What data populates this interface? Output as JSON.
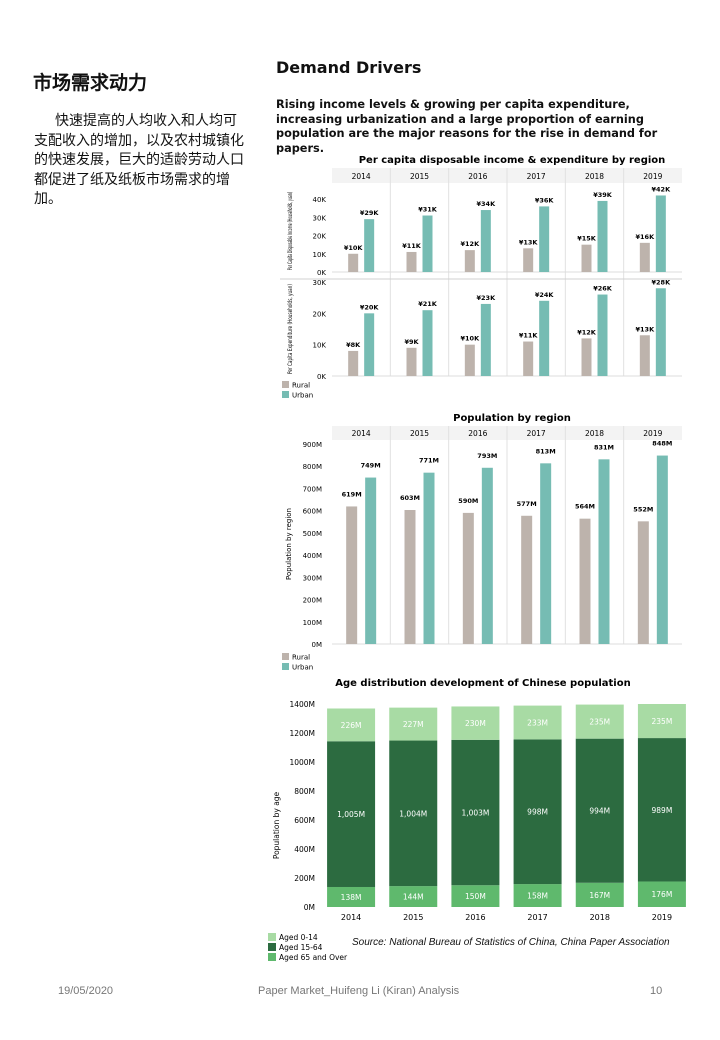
{
  "left": {
    "title": "市场需求动力",
    "body": "快速提高的人均收入和人均可支配收入的增加，以及农村城镇化的快速发展，巨大的适龄劳动人口都促进了纸及纸板市场需求的增加。"
  },
  "right": {
    "title": "Demand Drivers",
    "intro": "Rising income levels & growing per capita expenditure, increasing urbanization and a large proportion of earning population are the major reasons for the rise in demand for papers."
  },
  "colors": {
    "rural": "#bdb3ac",
    "urban": "#76bcb3",
    "age_0_14": "#a8dba4",
    "age_15_64": "#2c6b40",
    "age_65": "#5fb96d"
  },
  "source": "Source: National Bureau of Statistics of China, China Paper Association",
  "footer": {
    "date": "19/05/2020",
    "doc": "Paper Market_Huifeng Li (Kiran) Analysis",
    "page": "10"
  },
  "chart_data": [
    {
      "type": "bar",
      "title": "Per capita disposable income & expenditure by region",
      "categories": [
        "2014",
        "2015",
        "2016",
        "2017",
        "2018",
        "2019"
      ],
      "panels": [
        {
          "ylabel": "Per Capita Disposable Income (Households, yuan)",
          "ylim": [
            0,
            45000
          ],
          "yticks": [
            0,
            10000,
            20000,
            30000,
            40000
          ],
          "ytick_labels": [
            "0K",
            "10K",
            "20K",
            "30K",
            "40K"
          ],
          "series": [
            {
              "name": "Rural",
              "values": [
                10000,
                11000,
                12000,
                13000,
                15000,
                16000
              ],
              "labels": [
                "¥10K",
                "¥11K",
                "¥12K",
                "¥13K",
                "¥15K",
                "¥16K"
              ]
            },
            {
              "name": "Urban",
              "values": [
                29000,
                31000,
                34000,
                36000,
                39000,
                42000
              ],
              "labels": [
                "¥29K",
                "¥31K",
                "¥34K",
                "¥36K",
                "¥39K",
                "¥42K"
              ]
            }
          ]
        },
        {
          "ylabel": "Per Capita Expenditure (Households, yuan)",
          "ylim": [
            0,
            30000
          ],
          "yticks": [
            0,
            10000,
            20000,
            30000
          ],
          "ytick_labels": [
            "0K",
            "10K",
            "20K",
            "30K"
          ],
          "series": [
            {
              "name": "Rural",
              "values": [
                8000,
                9000,
                10000,
                11000,
                12000,
                13000
              ],
              "labels": [
                "¥8K",
                "¥9K",
                "¥10K",
                "¥11K",
                "¥12K",
                "¥13K"
              ]
            },
            {
              "name": "Urban",
              "values": [
                20000,
                21000,
                23000,
                24000,
                26000,
                28000
              ],
              "labels": [
                "¥20K",
                "¥21K",
                "¥23K",
                "¥24K",
                "¥26K",
                "¥28K"
              ]
            }
          ]
        }
      ],
      "legend": [
        "Rural",
        "Urban"
      ]
    },
    {
      "type": "bar",
      "title": "Population by region",
      "categories": [
        "2014",
        "2015",
        "2016",
        "2017",
        "2018",
        "2019"
      ],
      "ylabel": "Population by region",
      "ylim": [
        0,
        900
      ],
      "yticks": [
        0,
        100,
        200,
        300,
        400,
        500,
        600,
        700,
        800,
        900
      ],
      "ytick_labels": [
        "0M",
        "100M",
        "200M",
        "300M",
        "400M",
        "500M",
        "600M",
        "700M",
        "800M",
        "900M"
      ],
      "series": [
        {
          "name": "Rural",
          "values": [
            619,
            603,
            590,
            577,
            564,
            552
          ],
          "labels": [
            "619M",
            "603M",
            "590M",
            "577M",
            "564M",
            "552M"
          ]
        },
        {
          "name": "Urban",
          "values": [
            749,
            771,
            793,
            813,
            831,
            848
          ],
          "labels": [
            "749M",
            "771M",
            "793M",
            "813M",
            "831M",
            "848M"
          ]
        }
      ],
      "legend": [
        "Rural",
        "Urban"
      ]
    },
    {
      "type": "bar",
      "stacked": true,
      "title": "Age distribution development of Chinese population",
      "categories": [
        "2014",
        "2015",
        "2016",
        "2017",
        "2018",
        "2019"
      ],
      "ylabel": "Population by age",
      "ylim": [
        0,
        1400
      ],
      "yticks": [
        0,
        200,
        400,
        600,
        800,
        1000,
        1200,
        1400
      ],
      "ytick_labels": [
        "0M",
        "200M",
        "400M",
        "600M",
        "800M",
        "1000M",
        "1200M",
        "1400M"
      ],
      "series": [
        {
          "name": "Aged 65 and Over",
          "values": [
            138,
            144,
            150,
            158,
            167,
            176
          ],
          "labels": [
            "138M",
            "144M",
            "150M",
            "158M",
            "167M",
            "176M"
          ]
        },
        {
          "name": "Aged 15-64",
          "values": [
            1005,
            1004,
            1003,
            998,
            994,
            989
          ],
          "labels": [
            "1,005M",
            "1,004M",
            "1,003M",
            "998M",
            "994M",
            "989M"
          ]
        },
        {
          "name": "Aged 0-14",
          "values": [
            226,
            227,
            230,
            233,
            235,
            235
          ],
          "labels": [
            "226M",
            "227M",
            "230M",
            "233M",
            "235M",
            "235M"
          ]
        }
      ],
      "legend": [
        "Aged 0-14",
        "Aged 15-64",
        "Aged 65 and Over"
      ]
    }
  ]
}
